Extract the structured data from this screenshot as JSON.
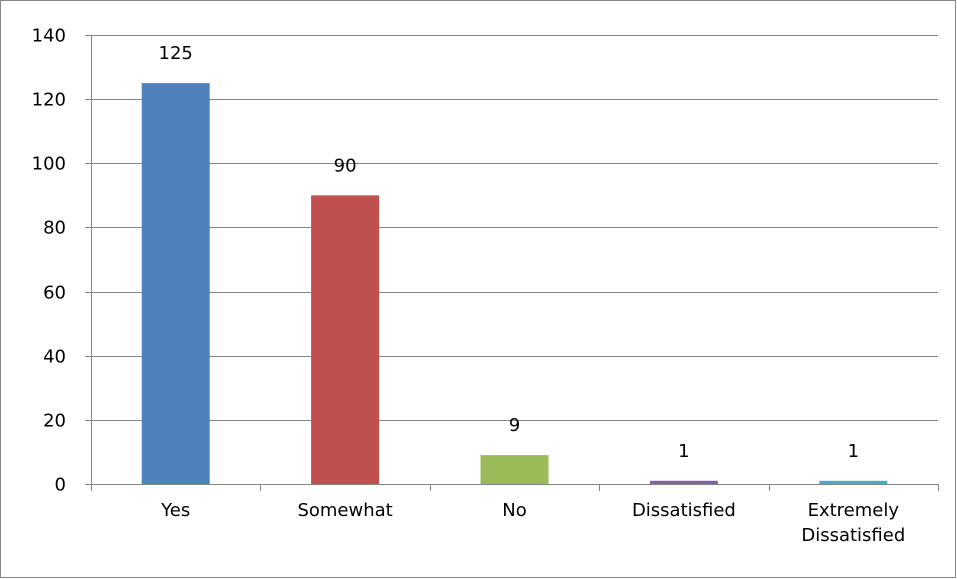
{
  "chart_data": {
    "type": "bar",
    "categories": [
      "Yes",
      "Somewhat",
      "No",
      "Dissatisfied",
      "Extremely Dissatisfied"
    ],
    "values": [
      125,
      90,
      9,
      1,
      1
    ],
    "data_labels": [
      "125",
      "90",
      "9",
      "1",
      "1"
    ],
    "colors": [
      "#4F81BD",
      "#C0504D",
      "#9BBB59",
      "#8064A2",
      "#4BACC6"
    ],
    "ylim": [
      0,
      140
    ],
    "yticks": [
      0,
      20,
      40,
      60,
      80,
      100,
      120,
      140
    ],
    "grid": true,
    "legend": "none",
    "title": "",
    "xlabel": "",
    "ylabel": ""
  }
}
